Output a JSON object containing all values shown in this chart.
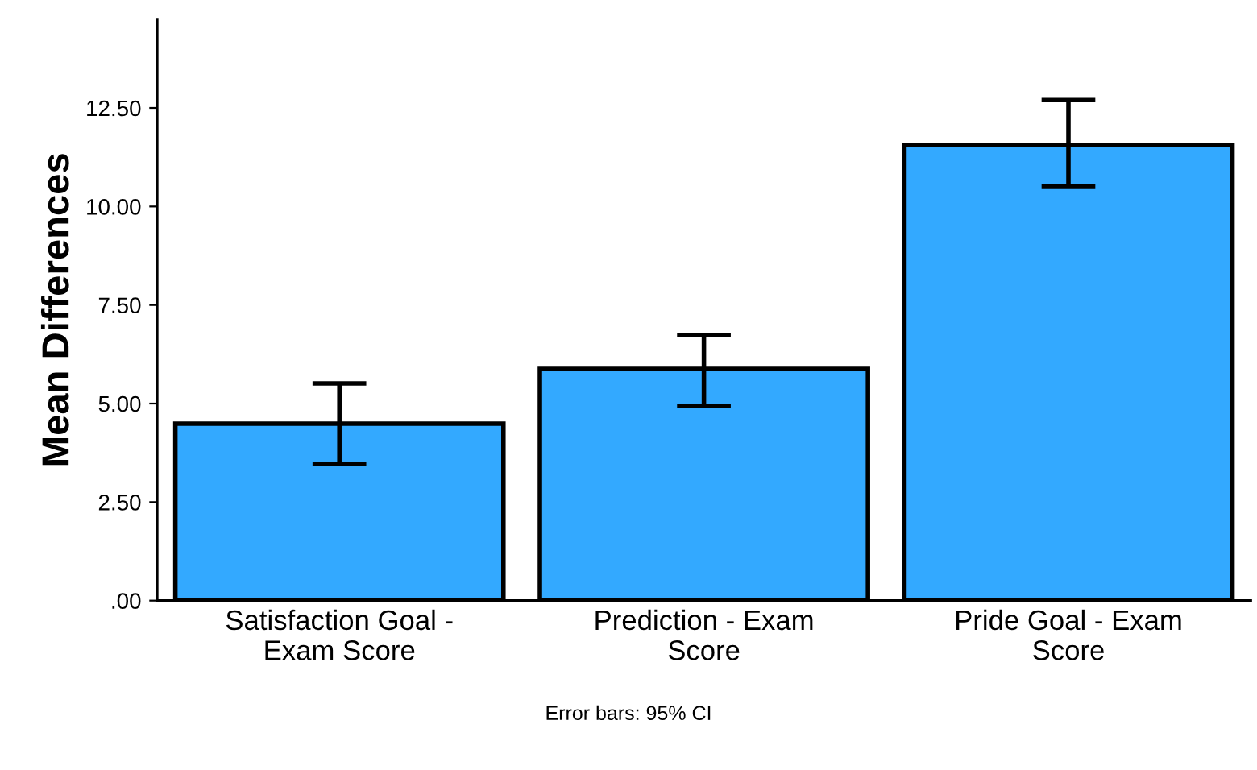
{
  "chart_data": {
    "type": "bar",
    "ylabel": "Mean Differences",
    "categories": [
      "Satisfaction Goal -\nExam Score",
      "Prediction - Exam\nScore",
      "Pride Goal - Exam\nScore"
    ],
    "values": [
      4.49,
      5.88,
      11.56
    ],
    "errors": [
      [
        3.47,
        5.51
      ],
      [
        4.94,
        6.74
      ],
      [
        10.5,
        12.7
      ]
    ],
    "color": "#33a9ff",
    "ylim": [
      0,
      14.75
    ],
    "yticks": [
      {
        "value": 0,
        "label": ".00"
      },
      {
        "value": 2.5,
        "label": "2.50"
      },
      {
        "value": 5,
        "label": "5.00"
      },
      {
        "value": 7.5,
        "label": "7.50"
      },
      {
        "value": 10,
        "label": "10.00"
      },
      {
        "value": 12.5,
        "label": "12.50"
      }
    ],
    "grid": false,
    "annotations": [
      "Error bars: 95% CI"
    ]
  }
}
